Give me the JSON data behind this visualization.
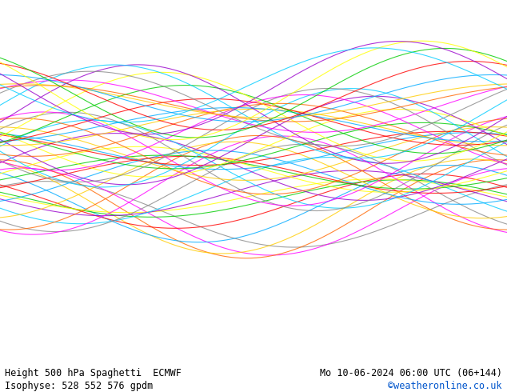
{
  "title_left": "Height 500 hPa Spaghetti  ECMWF",
  "title_right": "Mo 10-06-2024 06:00 UTC (06+144)",
  "subtitle_left": "Isophyse: 528 552 576 gpdm",
  "subtitle_right": "©weatheronline.co.uk",
  "subtitle_right_color": "#0055cc",
  "background_color": "#aaffaa",
  "land_color_main": "#aaffaa",
  "land_color_gray": "#cccccc",
  "border_color": "#111111",
  "text_color": "#000000",
  "map_extent": [
    2.5,
    18.5,
    45.5,
    56.5
  ],
  "footer_bg": "#ffffff",
  "footer_fontsize": 8.5,
  "dpi": 100,
  "fig_width": 6.34,
  "fig_height": 4.9,
  "ensemble_colors_552": [
    "#888888",
    "#888888",
    "#888888",
    "#888888",
    "#888888",
    "#888888",
    "#888888",
    "#888888",
    "#888888",
    "#888888",
    "#888888",
    "#888888",
    "#888888",
    "#888888",
    "#888888",
    "#888888",
    "#888888",
    "#888888",
    "#888888",
    "#888888",
    "#888888",
    "#888888",
    "#888888",
    "#888888",
    "#888888",
    "#888888",
    "#888888",
    "#888888",
    "#888888",
    "#888888",
    "#888888",
    "#888888",
    "#888888",
    "#888888",
    "#888888",
    "#888888",
    "#888888",
    "#888888",
    "#888888",
    "#888888",
    "#888888",
    "#888888",
    "#888888",
    "#888888",
    "#888888",
    "#888888",
    "#888888",
    "#888888",
    "#888888",
    "#888888"
  ],
  "special_colors_552": {
    "1": "#ff00ff",
    "2": "#ff6600",
    "3": "#ffcc00",
    "4": "#00aaff",
    "5": "#ff0000",
    "6": "#00cc00",
    "7": "#ffff00",
    "8": "#9900cc",
    "9": "#00ccff",
    "10": "#ff88ff"
  },
  "n_members": 50,
  "contour_lw": 0.8,
  "contour_alpha": 0.85
}
